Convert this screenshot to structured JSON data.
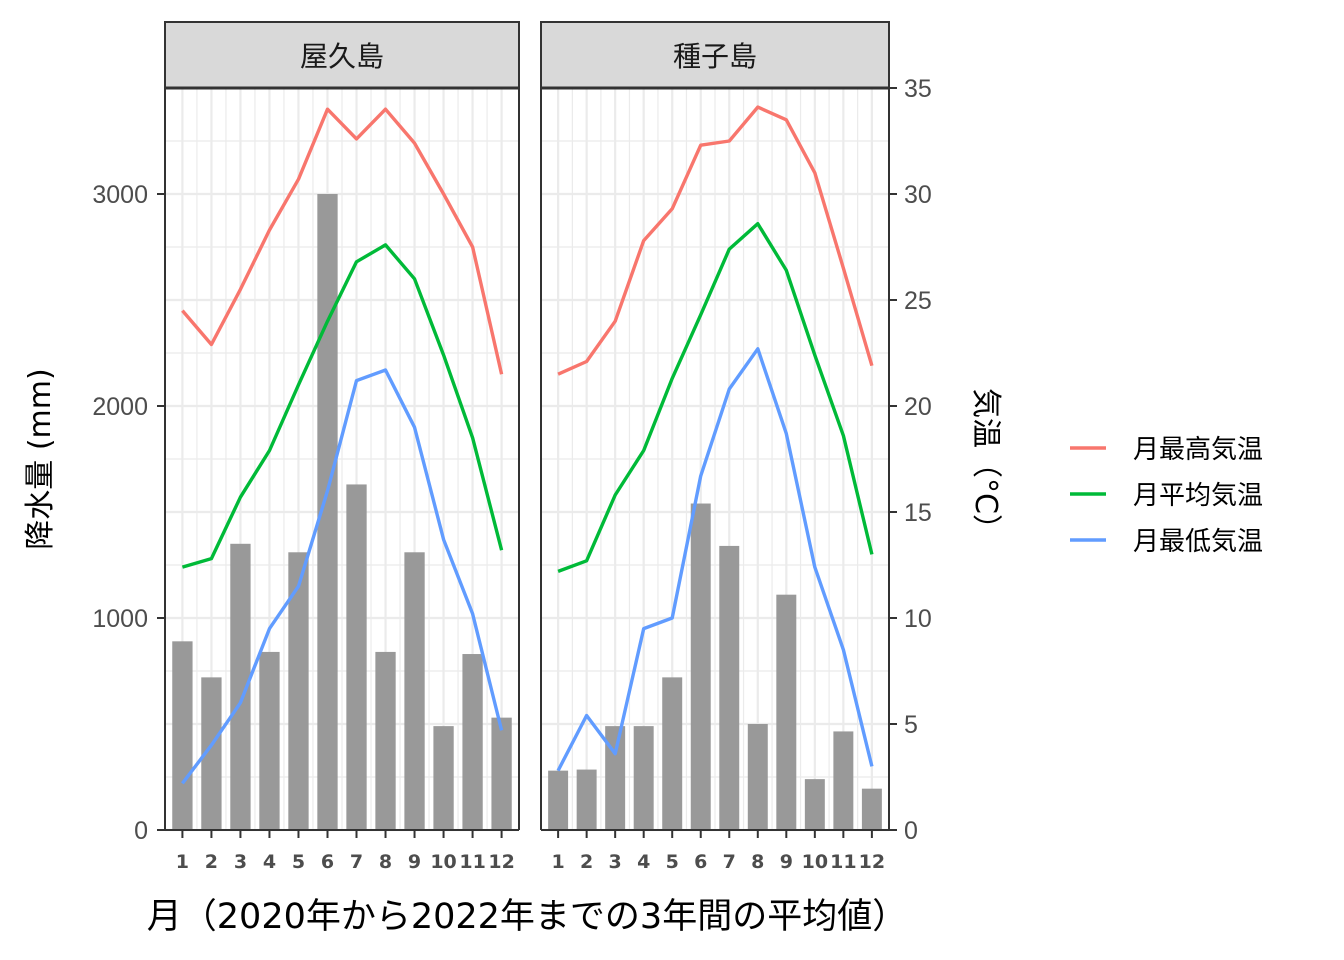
{
  "chart_data": {
    "type": "bar",
    "panels": [
      {
        "name": "屋久島",
        "precipitation": [
          890,
          720,
          1350,
          840,
          1310,
          3000,
          1630,
          840,
          1310,
          490,
          830,
          530
        ],
        "series": [
          {
            "name": "月最高気温",
            "values": [
              24.5,
              22.9,
              25.5,
              28.3,
              30.7,
              34.0,
              32.6,
              34.0,
              32.4,
              30.0,
              27.5,
              21.5
            ]
          },
          {
            "name": "月平均気温",
            "values": [
              12.4,
              12.8,
              15.7,
              17.9,
              21.0,
              24.0,
              26.8,
              27.6,
              26.0,
              22.4,
              18.5,
              13.2
            ]
          },
          {
            "name": "月最低気温",
            "values": [
              2.2,
              4.0,
              6.0,
              9.5,
              11.5,
              16.0,
              21.2,
              21.7,
              19.0,
              13.7,
              10.2,
              4.7
            ]
          }
        ]
      },
      {
        "name": "種子島",
        "precipitation": [
          280,
          285,
          490,
          490,
          720,
          1540,
          1340,
          500,
          1110,
          240,
          465,
          195
        ],
        "series": [
          {
            "name": "月最高気温",
            "values": [
              21.5,
              22.1,
              24.0,
              27.8,
              29.3,
              32.3,
              32.5,
              34.1,
              33.5,
              31.0,
              26.5,
              21.9
            ]
          },
          {
            "name": "月平均気温",
            "values": [
              12.2,
              12.7,
              15.8,
              17.9,
              21.3,
              24.3,
              27.4,
              28.6,
              26.4,
              22.4,
              18.6,
              13.0
            ]
          },
          {
            "name": "月最低気温",
            "values": [
              2.8,
              5.4,
              3.6,
              9.5,
              10.0,
              16.7,
              20.8,
              22.7,
              18.7,
              12.4,
              8.5,
              3.0
            ]
          }
        ]
      }
    ],
    "categories": [
      "1",
      "2",
      "3",
      "4",
      "5",
      "6",
      "7",
      "8",
      "9",
      "10",
      "11",
      "12"
    ],
    "y_left": {
      "label": "降水量 (mm)",
      "range": [
        0,
        3500
      ],
      "ticks": [
        "0",
        "1000",
        "2000",
        "3000"
      ]
    },
    "y_right": {
      "label": "気温（°C）",
      "range": [
        0,
        35
      ],
      "ticks": [
        "0",
        "5",
        "10",
        "15",
        "20",
        "25",
        "30",
        "35"
      ]
    },
    "xlabel": "月（2020年から2022年までの3年間の平均値）",
    "legend": {
      "placement": "right",
      "entries": [
        "月最高気温",
        "月平均気温",
        "月最低気温"
      ]
    },
    "colors": {
      "月最高気温": "#F8766D",
      "月平均気温": "#00BA38",
      "月最低気温": "#619CFF",
      "bar": "#999999",
      "strip": "#D9D9D9",
      "grid": "#EBEBEB"
    },
    "grid": true
  }
}
